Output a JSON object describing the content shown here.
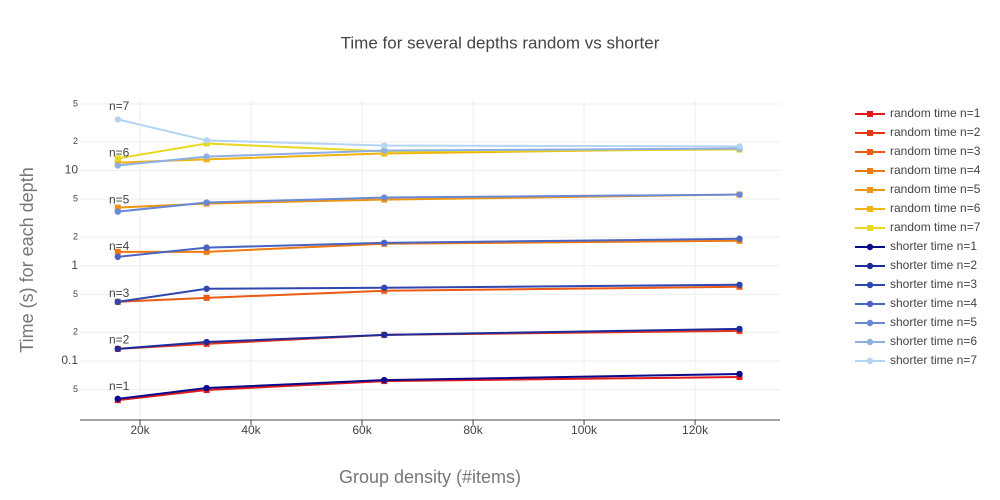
{
  "chart_data": {
    "type": "line",
    "title": "Time for several depths random vs shorter",
    "x_label": "Group density (#items)",
    "y_label": "Time (s) for each depth",
    "x": [
      16000,
      32000,
      64000,
      128000
    ],
    "xlim": [
      9190,
      135300
    ],
    "xticks": [
      {
        "value": 20000,
        "label": "20k"
      },
      {
        "value": 40000,
        "label": "40k"
      },
      {
        "value": 60000,
        "label": "60k"
      },
      {
        "value": 80000,
        "label": "80k"
      },
      {
        "value": 100000,
        "label": "100k"
      },
      {
        "value": 120000,
        "label": "120k"
      }
    ],
    "log_y": true,
    "ylim": [
      0.024,
      55
    ],
    "yticks": [
      {
        "value": 0.05,
        "label": "5"
      },
      0.1,
      {
        "value": 0.2,
        "label": "2"
      },
      {
        "value": 0.5,
        "label": "5"
      },
      1,
      {
        "value": 2,
        "label": "2"
      },
      {
        "value": 5,
        "label": "5"
      },
      10,
      {
        "value": 20,
        "label": "2"
      },
      {
        "value": 50,
        "label": "5"
      }
    ],
    "grid": true,
    "legend": "right",
    "annotations": [
      "n=1",
      "n=2",
      "n=3",
      "n=4",
      "n=5",
      "n=6",
      "n=7"
    ],
    "series": [
      {
        "name": "random time n=1",
        "color": "#e31a1c",
        "marker": "square",
        "values": [
          0.0388,
          0.0495,
          0.0615,
          0.0679
        ]
      },
      {
        "name": "random time n=2",
        "color": "#e8361a",
        "marker": "square",
        "values": [
          0.134,
          0.151,
          0.188,
          0.207
        ]
      },
      {
        "name": "random time n=3",
        "color": "#ec5a14",
        "marker": "square",
        "values": [
          0.418,
          0.46,
          0.546,
          0.601
        ]
      },
      {
        "name": "random time n=4",
        "color": "#f07a10",
        "marker": "square",
        "values": [
          1.4,
          1.4,
          1.7,
          1.83
        ]
      },
      {
        "name": "random time n=5",
        "color": "#f0960e",
        "marker": "square",
        "values": [
          4.08,
          4.49,
          4.95,
          5.59
        ]
      },
      {
        "name": "random time n=6",
        "color": "#f0b40c",
        "marker": "square",
        "values": [
          12.1,
          13.1,
          15.1,
          17.0
        ]
      },
      {
        "name": "random time n=7",
        "color": "#e8d820",
        "marker": "square",
        "values": [
          13.4,
          19.2,
          15.9,
          16.6
        ]
      },
      {
        "name": "shorter time n=1",
        "color": "#0a0a8c",
        "marker": "circle",
        "values": [
          0.04,
          0.052,
          0.063,
          0.073
        ]
      },
      {
        "name": "shorter time n=2",
        "color": "#1c2a9c",
        "marker": "circle",
        "values": [
          0.134,
          0.158,
          0.188,
          0.217
        ]
      },
      {
        "name": "shorter time n=3",
        "color": "#3046b0",
        "marker": "circle",
        "values": [
          0.418,
          0.573,
          0.587,
          0.631
        ]
      },
      {
        "name": "shorter time n=4",
        "color": "#4a64c4",
        "marker": "circle",
        "values": [
          1.24,
          1.55,
          1.74,
          1.92
        ]
      },
      {
        "name": "shorter time n=5",
        "color": "#6a88d8",
        "marker": "circle",
        "values": [
          3.7,
          4.61,
          5.2,
          5.59
        ]
      },
      {
        "name": "shorter time n=6",
        "color": "#8eaee6",
        "marker": "circle",
        "values": [
          11.3,
          14.0,
          16.2,
          17.0
        ]
      },
      {
        "name": "shorter time n=7",
        "color": "#b4d4f4",
        "marker": "circle",
        "values": [
          34.4,
          20.7,
          18.3,
          17.9
        ]
      }
    ]
  }
}
